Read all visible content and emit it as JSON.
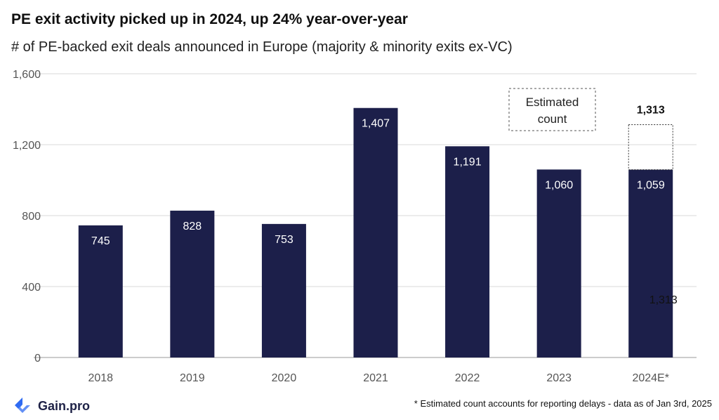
{
  "header": {
    "title": "PE exit activity picked up in 2024, up 24% year-over-year",
    "subtitle": "# of PE-backed exit deals announced in Europe (majority & minority exits ex-VC)"
  },
  "chart_data": {
    "type": "bar",
    "categories": [
      "2018",
      "2019",
      "2020",
      "2021",
      "2022",
      "2023",
      "2024E*"
    ],
    "series": [
      {
        "values": [
          745,
          828,
          753,
          1407,
          1191,
          1060,
          1059
        ]
      }
    ],
    "estimated": {
      "category": "2024E*",
      "value": 1313,
      "label": "1,313"
    },
    "data_labels": [
      "745",
      "828",
      "753",
      "1,407",
      "1,191",
      "1,060",
      "1,059"
    ],
    "extra_label": "1,313",
    "ylim": [
      0,
      1600
    ],
    "yticks": [
      0,
      400,
      800,
      1200,
      1600
    ],
    "ytick_labels": [
      "0",
      "400",
      "800",
      "1,200",
      "1,600"
    ],
    "grid": true,
    "annotation": [
      "Estimated",
      "count"
    ],
    "colors": {
      "bar": "#1c1f4a",
      "grid": "#d9d9d9",
      "label": "#ffffff"
    }
  },
  "footer": {
    "logo_text": "Gain.pro",
    "logo_icon": "gain-pro-logo-icon",
    "footnote": "* Estimated count accounts for reporting delays - data as of Jan 3rd, 2025"
  }
}
